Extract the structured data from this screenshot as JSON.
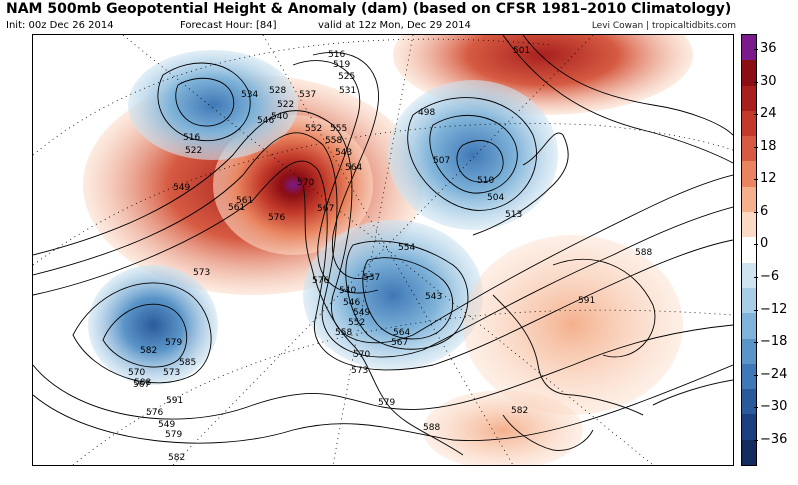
{
  "header": {
    "title": "NAM 500mb Geopotential Height & Anomaly (dam) (based on CFSR 1981–2010 Climatology)",
    "init": "Init: 00z Dec 26 2014",
    "forecast_hour": "Forecast Hour: [84]",
    "valid": "valid at 12z Mon, Dec 29 2014",
    "credit": "Levi Cowan | tropicaltidbits.com"
  },
  "colorbar": {
    "labels": [
      "36",
      "30",
      "24",
      "18",
      "12",
      "6",
      "0",
      "−6",
      "−12",
      "−18",
      "−24",
      "−30",
      "−36"
    ],
    "colors": [
      "#7a1a8c",
      "#8b0e14",
      "#a8201e",
      "#c23a2a",
      "#d65b42",
      "#e9845f",
      "#f4b08d",
      "#fbd9c4",
      "#ffffff",
      "#cfe4f1",
      "#a9cde6",
      "#7fb3d9",
      "#5b95c8",
      "#3f78b6",
      "#2a5a9c",
      "#1c3f7e",
      "#132b5e"
    ]
  },
  "contour_labels": [
    "516",
    "519",
    "525",
    "528",
    "531",
    "534",
    "537",
    "522",
    "540",
    "546",
    "552",
    "555",
    "558",
    "543",
    "561",
    "564",
    "567",
    "570",
    "573",
    "576",
    "579",
    "582",
    "585",
    "588",
    "591",
    "549",
    "507",
    "510",
    "504",
    "498",
    "501",
    "513",
    "579",
    "573",
    "570",
    "564",
    "567",
    "558",
    "552",
    "549",
    "546",
    "540",
    "537",
    "554",
    "543",
    "516",
    "522",
    "549",
    "561",
    "576",
    "567",
    "570",
    "573",
    "576",
    "579",
    "582",
    "582",
    "588",
    "591",
    "588"
  ],
  "legend_title": ""
}
